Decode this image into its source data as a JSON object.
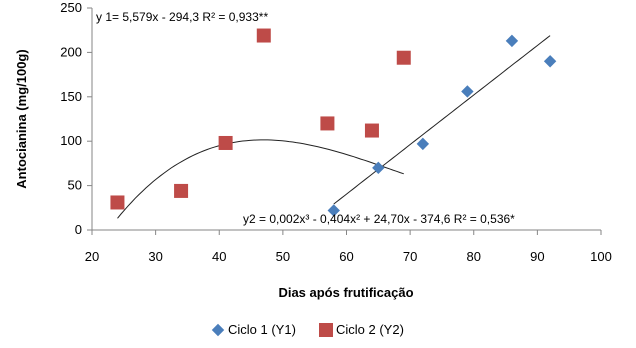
{
  "chart_data": {
    "type": "scatter",
    "title": "",
    "xlabel": "Dias após frutificação",
    "ylabel": "Antocianina (mg/100g)",
    "xlim": [
      20,
      100
    ],
    "ylim": [
      0,
      250
    ],
    "xticks": [
      "20",
      "30",
      "40",
      "50",
      "60",
      "70",
      "80",
      "90",
      "100"
    ],
    "yticks": [
      "0",
      "50",
      "100",
      "150",
      "200",
      "250"
    ],
    "grid": false,
    "legend_position": "bottom",
    "series": [
      {
        "name": "Ciclo 1 (Y1)",
        "marker": "diamond",
        "color": "#4a7ebb",
        "points": [
          [
            58,
            22
          ],
          [
            65,
            70
          ],
          [
            72,
            97
          ],
          [
            79,
            156
          ],
          [
            86,
            213
          ],
          [
            92,
            190
          ]
        ]
      },
      {
        "name": "Ciclo 2 (Y2)",
        "marker": "square",
        "color": "#be4b48",
        "points": [
          [
            24,
            31
          ],
          [
            34,
            44
          ],
          [
            41,
            98
          ],
          [
            47,
            219
          ],
          [
            57,
            120
          ],
          [
            64,
            112
          ],
          [
            69,
            194
          ]
        ]
      }
    ],
    "trendlines": [
      {
        "type": "linear",
        "x_range": [
          58,
          92
        ],
        "coefficients": [
          5.579,
          -294.3
        ]
      },
      {
        "type": "poly3",
        "x_range": [
          24,
          69
        ],
        "coefficients": [
          0.002,
          -0.404,
          24.7,
          -374.6
        ]
      }
    ],
    "annotations": [
      "y 1= 5,579x - 294,3 R² = 0,933**",
      "y2 = 0,002x³ - 0,404x² + 24,70x - 374,6 R² = 0,536*"
    ]
  }
}
